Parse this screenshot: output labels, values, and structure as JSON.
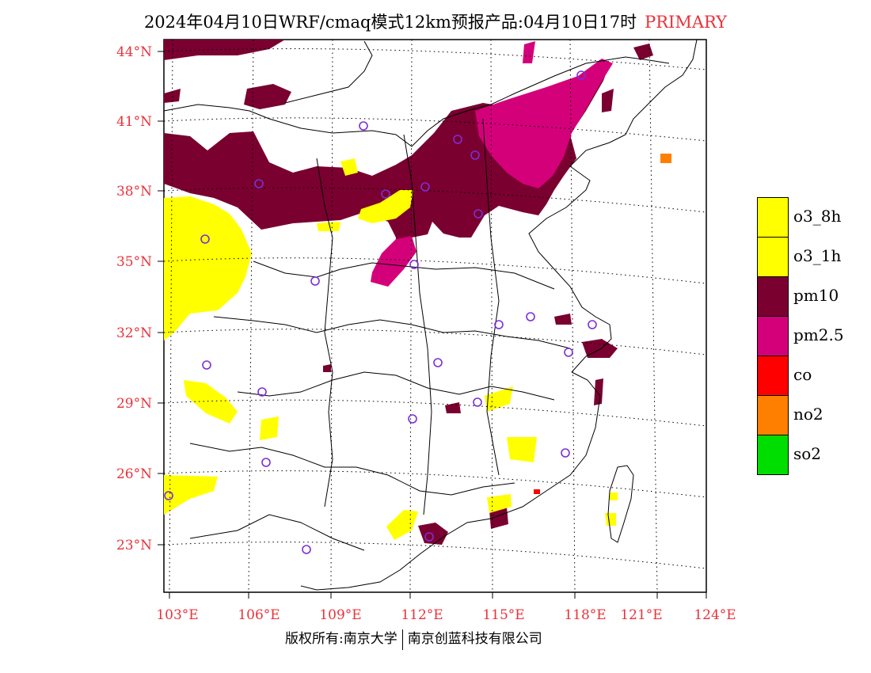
{
  "title": {
    "main": "2024年04月10日WRF/cmaq模式12km预报产品:04月10日17时",
    "tag": "PRIMARY"
  },
  "axes": {
    "lat_labels": [
      "44°N",
      "41°N",
      "38°N",
      "35°N",
      "32°N",
      "29°N",
      "26°N",
      "23°N"
    ],
    "lon_labels": [
      "103°E",
      "106°E",
      "109°E",
      "112°E",
      "115°E",
      "118°E",
      "121°E",
      "124°E"
    ]
  },
  "legend": [
    {
      "label": "o3_8h",
      "color": "#ffff00"
    },
    {
      "label": "o3_1h",
      "color": "#ffff00"
    },
    {
      "label": "pm10",
      "color": "#7a0030"
    },
    {
      "label": "pm2.5",
      "color": "#d4007a"
    },
    {
      "label": "co",
      "color": "#ff0000"
    },
    {
      "label": "no2",
      "color": "#ff7f00"
    },
    {
      "label": "so2",
      "color": "#00dd00"
    }
  ],
  "footer": {
    "left": "版权所有:南京大学",
    "right": "南京创蓝科技有限公司"
  },
  "colors": {
    "pm10": "#7a0030",
    "pm25": "#d4007a",
    "o3": "#ffff00",
    "no2": "#ff7f00",
    "co": "#ff0000",
    "station": "#7b2fd6",
    "label_red": "#e8333a"
  }
}
